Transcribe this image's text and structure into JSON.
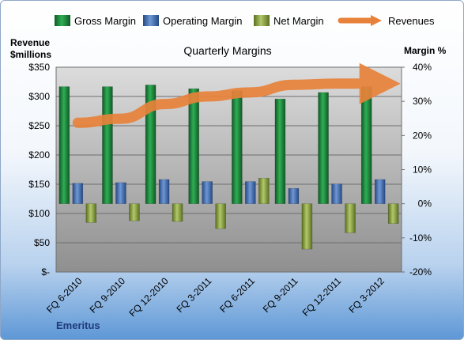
{
  "chart_data": {
    "type": "bar",
    "title": "Quarterly Margins",
    "company": "Emeritus",
    "y_left_label": [
      "Revenue",
      "$millions"
    ],
    "y_right_label": "Margin %",
    "categories": [
      "FQ 6-2010",
      "FQ 9-2010",
      "FQ 12-2010",
      "FQ 3-2011",
      "FQ 6-2011",
      "FQ 9-2011",
      "FQ 12-2011",
      "FQ 3-2012"
    ],
    "left_ticks": [
      "$-",
      "$50",
      "$100",
      "$150",
      "$200",
      "$250",
      "$300",
      "$350"
    ],
    "left_ylim": [
      0,
      350
    ],
    "right_ticks": [
      "-20%",
      "-10%",
      "0%",
      "10%",
      "20%",
      "30%",
      "40%"
    ],
    "right_ylim": [
      -20,
      40
    ],
    "series": [
      {
        "name": "Gross Margin",
        "axis": "right",
        "kind": "bar",
        "color": "#1e7a3a",
        "values": [
          34.3,
          34.3,
          34.8,
          33.7,
          33.1,
          30.7,
          32.6,
          34.3
        ]
      },
      {
        "name": "Operating Margin",
        "axis": "right",
        "kind": "bar",
        "color": "#3a63a8",
        "values": [
          6.0,
          6.2,
          7.1,
          6.5,
          6.5,
          4.5,
          5.8,
          7.1
        ]
      },
      {
        "name": "Net Margin",
        "axis": "right",
        "kind": "bar",
        "color": "#7f9a3a",
        "values": [
          -5.5,
          -5.0,
          -5.2,
          -7.3,
          7.5,
          -13.3,
          -8.5,
          -5.8
        ]
      },
      {
        "name": "Revenues",
        "axis": "left",
        "kind": "line",
        "color": "#e8823a",
        "values": [
          255,
          262,
          287,
          300,
          307,
          320,
          322,
          322
        ]
      }
    ]
  }
}
